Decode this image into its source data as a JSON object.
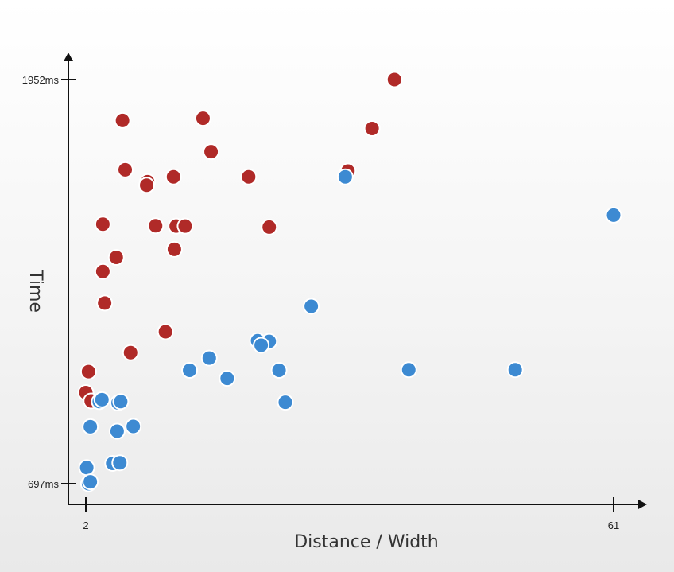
{
  "chart_data": {
    "type": "scatter",
    "xlabel": "Distance / Width",
    "ylabel": "Time",
    "xlim": [
      2,
      61
    ],
    "ylim": [
      697,
      1952
    ],
    "x_ticks": [
      {
        "value": 2,
        "label": "2"
      },
      {
        "value": 61,
        "label": "61"
      }
    ],
    "y_ticks": [
      {
        "value": 697,
        "label": "697ms"
      },
      {
        "value": 1952,
        "label": "1952ms"
      }
    ],
    "grid": false,
    "series": [
      {
        "color": "#b02a28",
        "points": [
          {
            "x": 36.5,
            "y": 1952
          },
          {
            "x": 34,
            "y": 1800
          },
          {
            "x": 31.3,
            "y": 1668
          },
          {
            "x": 6.1,
            "y": 1825
          },
          {
            "x": 15.1,
            "y": 1832
          },
          {
            "x": 16,
            "y": 1728
          },
          {
            "x": 6.4,
            "y": 1672
          },
          {
            "x": 8.9,
            "y": 1635
          },
          {
            "x": 8.8,
            "y": 1624
          },
          {
            "x": 11.8,
            "y": 1650
          },
          {
            "x": 20.2,
            "y": 1650
          },
          {
            "x": 3.9,
            "y": 1503
          },
          {
            "x": 9.8,
            "y": 1498
          },
          {
            "x": 12.1,
            "y": 1497
          },
          {
            "x": 13.1,
            "y": 1497
          },
          {
            "x": 22.5,
            "y": 1494
          },
          {
            "x": 11.9,
            "y": 1425
          },
          {
            "x": 5.4,
            "y": 1400
          },
          {
            "x": 3.9,
            "y": 1356
          },
          {
            "x": 4.1,
            "y": 1258
          },
          {
            "x": 10.9,
            "y": 1169
          },
          {
            "x": 7,
            "y": 1104
          },
          {
            "x": 2.3,
            "y": 1045
          },
          {
            "x": 2,
            "y": 980
          },
          {
            "x": 2.6,
            "y": 954
          }
        ]
      },
      {
        "color": "#3d8ad2",
        "points": [
          {
            "x": 61,
            "y": 1531
          },
          {
            "x": 31,
            "y": 1650
          },
          {
            "x": 27.2,
            "y": 1248
          },
          {
            "x": 21.2,
            "y": 1141
          },
          {
            "x": 22.5,
            "y": 1139
          },
          {
            "x": 21.6,
            "y": 1127
          },
          {
            "x": 15.8,
            "y": 1087
          },
          {
            "x": 23.6,
            "y": 1049
          },
          {
            "x": 38.1,
            "y": 1051
          },
          {
            "x": 50,
            "y": 1051
          },
          {
            "x": 13.6,
            "y": 1049
          },
          {
            "x": 17.8,
            "y": 1024
          },
          {
            "x": 24.3,
            "y": 950
          },
          {
            "x": 3.5,
            "y": 952
          },
          {
            "x": 3.8,
            "y": 958
          },
          {
            "x": 5.6,
            "y": 948
          },
          {
            "x": 5.9,
            "y": 952
          },
          {
            "x": 2.5,
            "y": 874
          },
          {
            "x": 5.5,
            "y": 860
          },
          {
            "x": 7.3,
            "y": 875
          },
          {
            "x": 5,
            "y": 760
          },
          {
            "x": 5.8,
            "y": 762
          },
          {
            "x": 2.1,
            "y": 747
          },
          {
            "x": 2.3,
            "y": 697
          },
          {
            "x": 2.5,
            "y": 703
          }
        ]
      }
    ]
  }
}
